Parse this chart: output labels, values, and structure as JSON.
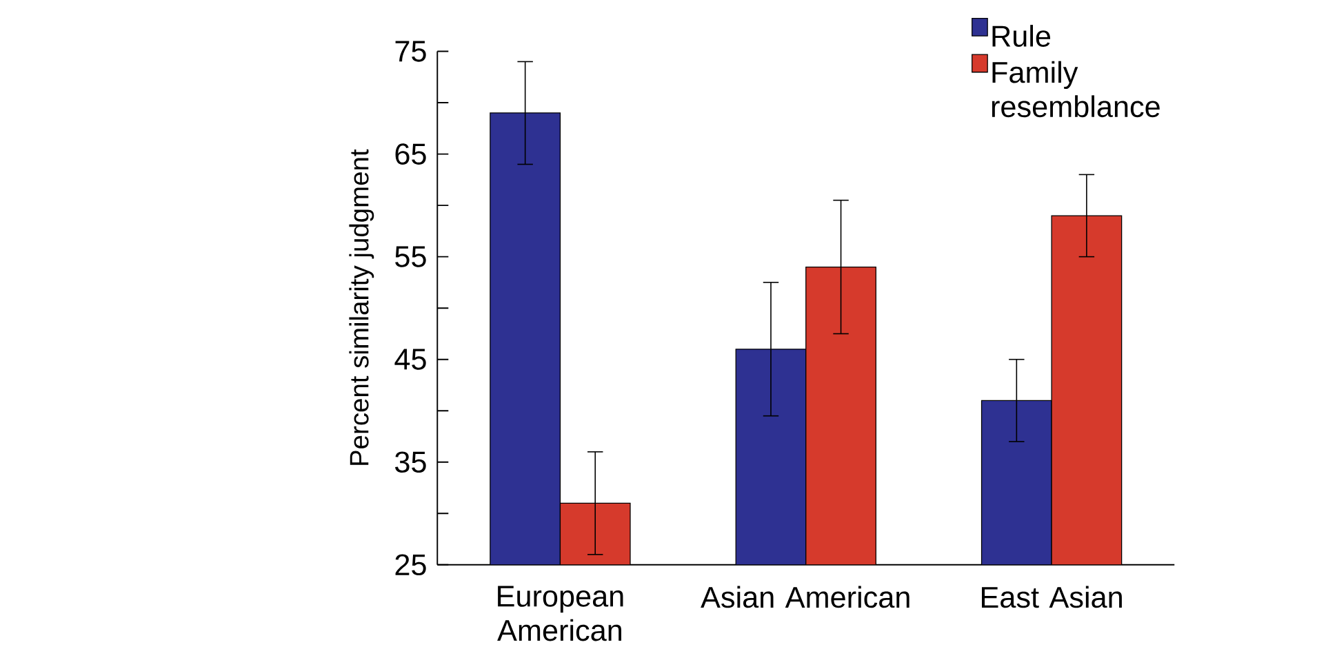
{
  "chart_data": {
    "type": "bar",
    "ylabel": "Percent similarity judgment",
    "categories": [
      "European American",
      "Asian American",
      "East Asian"
    ],
    "series": [
      {
        "name": "Rule",
        "color": "#2e3192",
        "values": [
          69,
          46,
          41
        ],
        "errors": [
          5,
          6.5,
          4
        ]
      },
      {
        "name": "Family resemblance",
        "color": "#d63a2c",
        "values": [
          31,
          54,
          59
        ],
        "errors": [
          5,
          6.5,
          4
        ]
      }
    ],
    "ylim": [
      25,
      75
    ],
    "yticks": [
      25,
      {
        "value": 30,
        "label": null
      },
      35,
      {
        "value": 40,
        "label": null
      },
      45,
      {
        "value": 50,
        "label": null
      },
      55,
      {
        "value": 60,
        "label": null
      },
      65,
      {
        "value": 70,
        "label": null
      },
      75
    ],
    "legend": "top right",
    "grid": false
  }
}
